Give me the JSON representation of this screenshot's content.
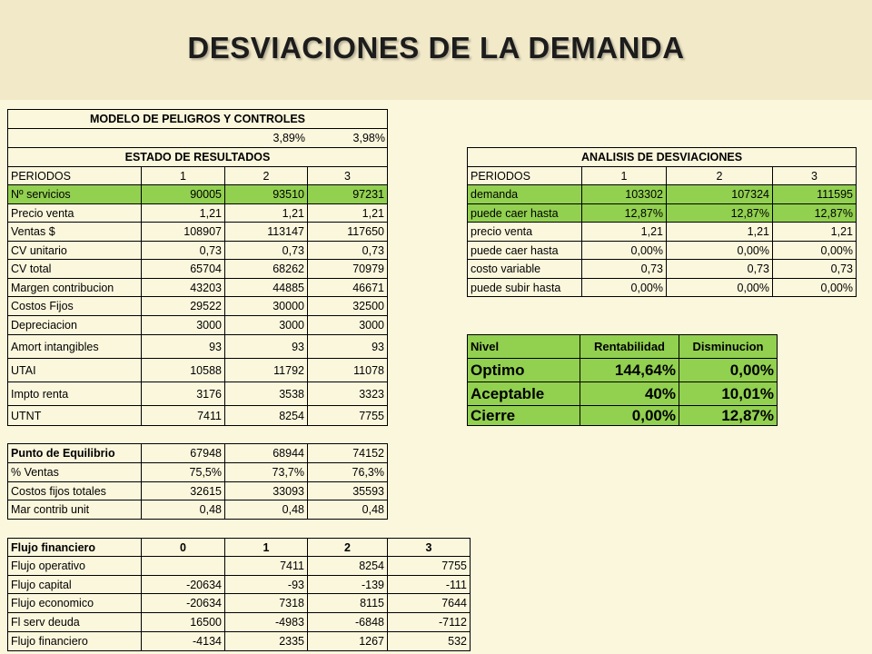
{
  "title": "DESVIACIONES DE LA DEMANDA",
  "results": {
    "title": "MODELO DE PELIGROS Y CONTROLES",
    "rates": [
      "3,89%",
      "3,98%"
    ],
    "subtitle": "ESTADO DE RESULTADOS",
    "header": [
      "PERIODOS",
      "1",
      "2",
      "3"
    ],
    "rows": [
      [
        "Nº servicios",
        "90005",
        "93510",
        "97231"
      ],
      [
        "Precio venta",
        "1,21",
        "1,21",
        "1,21"
      ],
      [
        "Ventas $",
        "108907",
        "113147",
        "117650"
      ],
      [
        "CV unitario",
        "0,73",
        "0,73",
        "0,73"
      ],
      [
        "CV total",
        "65704",
        "68262",
        "70979"
      ],
      [
        "Margen contribucion",
        "43203",
        "44885",
        "46671"
      ],
      [
        "Costos Fijos",
        "29522",
        "30000",
        "32500"
      ],
      [
        "Depreciacion",
        "3000",
        "3000",
        "3000"
      ],
      [
        "Amort intangibles",
        "93",
        "93",
        "93"
      ],
      [
        "UTAI",
        "10588",
        "11792",
        "11078"
      ],
      [
        "Impto renta",
        "3176",
        "3538",
        "3323"
      ],
      [
        "UTNT",
        "7411",
        "8254",
        "7755"
      ]
    ]
  },
  "deviations": {
    "title": "ANALISIS DE DESVIACIONES",
    "header": [
      "PERIODOS",
      "1",
      "2",
      "3"
    ],
    "rows": [
      [
        "demanda",
        "103302",
        "107324",
        "111595"
      ],
      [
        "puede caer hasta",
        "12,87%",
        "12,87%",
        "12,87%"
      ],
      [
        "precio venta",
        "1,21",
        "1,21",
        "1,21"
      ],
      [
        "puede caer hasta",
        "0,00%",
        "0,00%",
        "0,00%"
      ],
      [
        "costo variable",
        "0,73",
        "0,73",
        "0,73"
      ],
      [
        "puede subir hasta",
        "0,00%",
        "0,00%",
        "0,00%"
      ]
    ]
  },
  "levels": {
    "header": [
      "Nivel",
      "Rentabilidad",
      "Disminucion"
    ],
    "rows": [
      [
        "Optimo",
        "144,64%",
        "0,00%"
      ],
      [
        "Aceptable",
        "40%",
        "10,01%"
      ],
      [
        "Cierre",
        "0,00%",
        "12,87%"
      ]
    ]
  },
  "breakeven": {
    "rows": [
      [
        "Punto de Equilibrio",
        "67948",
        "68944",
        "74152"
      ],
      [
        "% Ventas",
        "75,5%",
        "73,7%",
        "76,3%"
      ],
      [
        "Costos fijos totales",
        "32615",
        "33093",
        "35593"
      ],
      [
        "Mar contrib unit",
        "0,48",
        "0,48",
        "0,48"
      ]
    ]
  },
  "cashflow": {
    "header": [
      "Flujo financiero",
      "0",
      "1",
      "2",
      "3"
    ],
    "rows": [
      [
        "Flujo operativo",
        null,
        "7411",
        "8254",
        "7755"
      ],
      [
        "Flujo capital",
        "-20634",
        "-93",
        "-139",
        "-111"
      ],
      [
        "Flujo economico",
        "-20634",
        "7318",
        "8115",
        "7644"
      ],
      [
        "Fl serv deuda",
        "16500",
        "-4983",
        "-6848",
        "-7112"
      ],
      [
        "Flujo financiero",
        "-4134",
        "2335",
        "1267",
        "532"
      ]
    ]
  }
}
